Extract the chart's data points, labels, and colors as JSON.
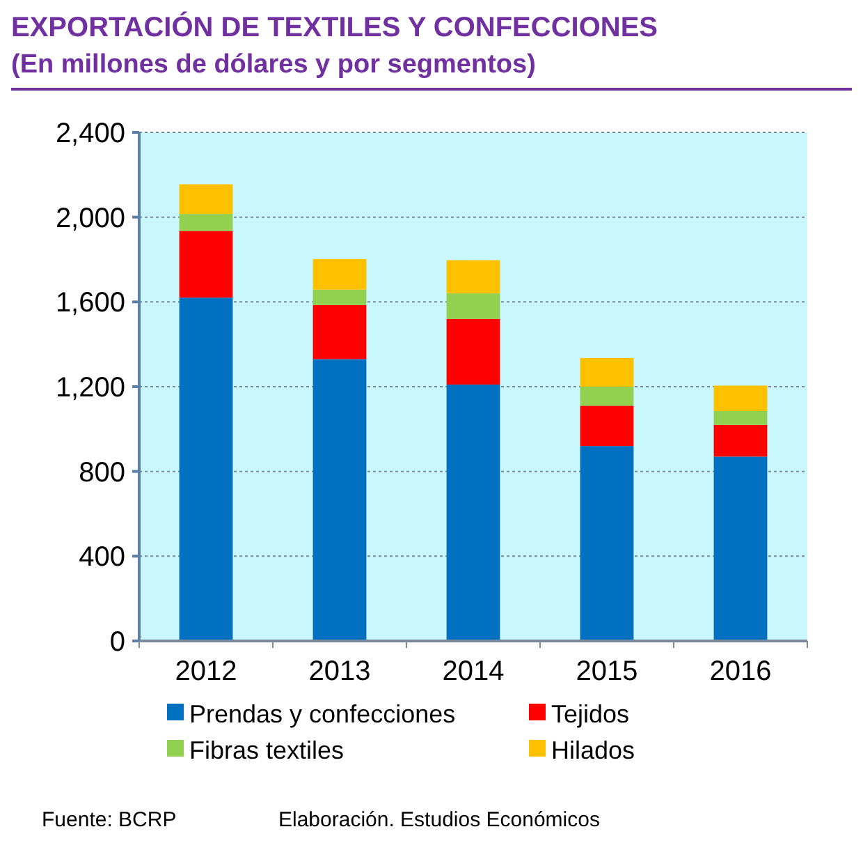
{
  "chart_data": {
    "type": "bar",
    "title": "EXPORTACIÓN DE TEXTILES Y CONFECCIONES",
    "subtitle": "(En millones de dólares y por segmentos)",
    "categories": [
      "2012",
      "2013",
      "2014",
      "2015",
      "2016"
    ],
    "series": [
      {
        "name": "Prendas y confecciones",
        "color": "#0070c0",
        "values": [
          1620,
          1330,
          1210,
          920,
          870
        ]
      },
      {
        "name": "Tejidos",
        "color": "#ff0000",
        "values": [
          315,
          255,
          310,
          190,
          150
        ]
      },
      {
        "name": "Fibras textiles",
        "color": "#92d050",
        "values": [
          80,
          73,
          120,
          90,
          65
        ]
      },
      {
        "name": "Hilados",
        "color": "#ffc000",
        "values": [
          140,
          144,
          157,
          135,
          120
        ]
      }
    ],
    "stacked": true,
    "ylim": [
      0,
      2400
    ],
    "yticks": [
      0,
      {
        "value": 400,
        "label": "400"
      },
      {
        "value": 800,
        "label": "800"
      },
      {
        "value": 1200,
        "label": "1,200"
      },
      {
        "value": 1600,
        "label": "1,600"
      },
      {
        "value": 2000,
        "label": "2,000"
      },
      {
        "value": 2400,
        "label": "2,400"
      }
    ],
    "grid": "y",
    "legend": "bottom",
    "annotations": [
      "Fuente: BCRP",
      "Elaboración. Estudios Económicos"
    ]
  }
}
